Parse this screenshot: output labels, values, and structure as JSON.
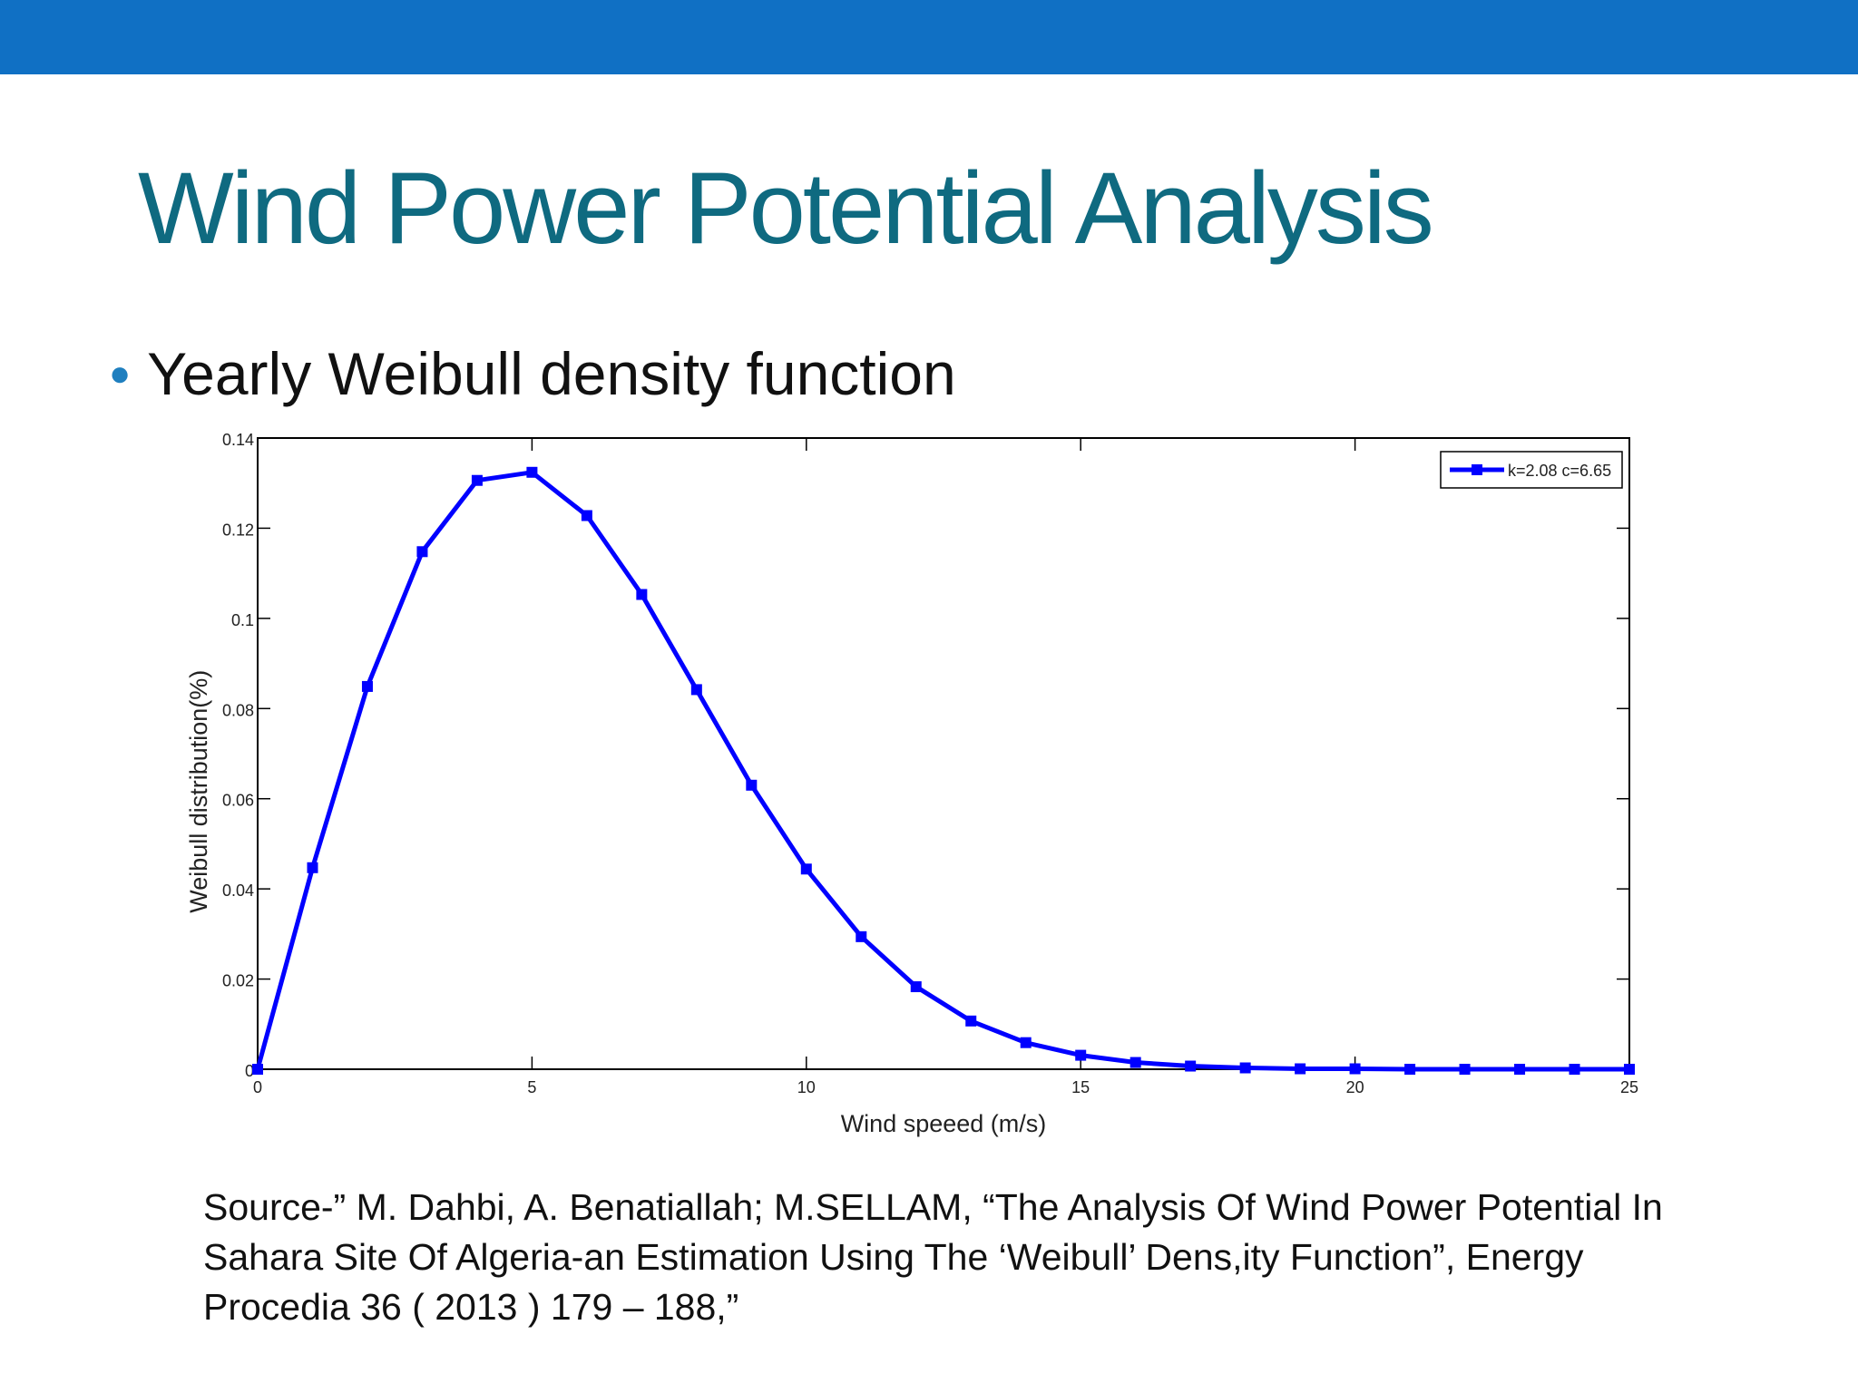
{
  "slide": {
    "title": "Wind Power Potential Analysis",
    "bullet": "Yearly Weibull density function",
    "source": "Source-” M. Dahbi, A. Benatiallah; M.SELLAM, “The Analysis Of Wind Power Potential In Sahara Site Of Algeria-an Estimation Using The ‘Weibull’ Dens,ity Function”, Energy Procedia 36 ( 2013 ) 179 – 188,”",
    "colors": {
      "top_bar": "#1070c4",
      "title": "#0f6a80",
      "bullet": "#1f7fbf",
      "series": "#0000ff"
    }
  },
  "chart_data": {
    "type": "line",
    "title": "",
    "xlabel": "Wind speeed (m/s)",
    "ylabel": "Weibull distribution(%)",
    "xlim": [
      0,
      25
    ],
    "ylim": [
      0,
      0.14
    ],
    "xticks": [
      0,
      5,
      10,
      15,
      20,
      25
    ],
    "xtick_labels": [
      "0",
      "5",
      "10",
      "15",
      "20",
      "25"
    ],
    "yticks": [
      0,
      0.02,
      0.04,
      0.06,
      0.08,
      0.1,
      0.12,
      0.14
    ],
    "ytick_labels": [
      "0",
      "0.02",
      "0.04",
      "0.06",
      "0.08",
      "0.1",
      "0.12",
      "0.14"
    ],
    "grid": false,
    "legend_position": "top-right",
    "series": [
      {
        "name": "k=2.08 c=6.65",
        "color": "#0000ff",
        "marker": "square",
        "x": [
          0,
          1,
          2,
          3,
          4,
          5,
          6,
          7,
          8,
          9,
          10,
          11,
          12,
          13,
          14,
          15,
          16,
          17,
          18,
          19,
          20,
          21,
          22,
          23,
          24,
          25
        ],
        "y": [
          0,
          0.0447,
          0.0849,
          0.1148,
          0.1306,
          0.1324,
          0.1228,
          0.1053,
          0.0842,
          0.063,
          0.0444,
          0.0294,
          0.0183,
          0.0107,
          0.0059,
          0.0031,
          0.0015,
          0.0007,
          0.0003,
          0.0001,
          0.0001,
          0,
          0,
          0,
          0,
          0
        ]
      }
    ]
  }
}
